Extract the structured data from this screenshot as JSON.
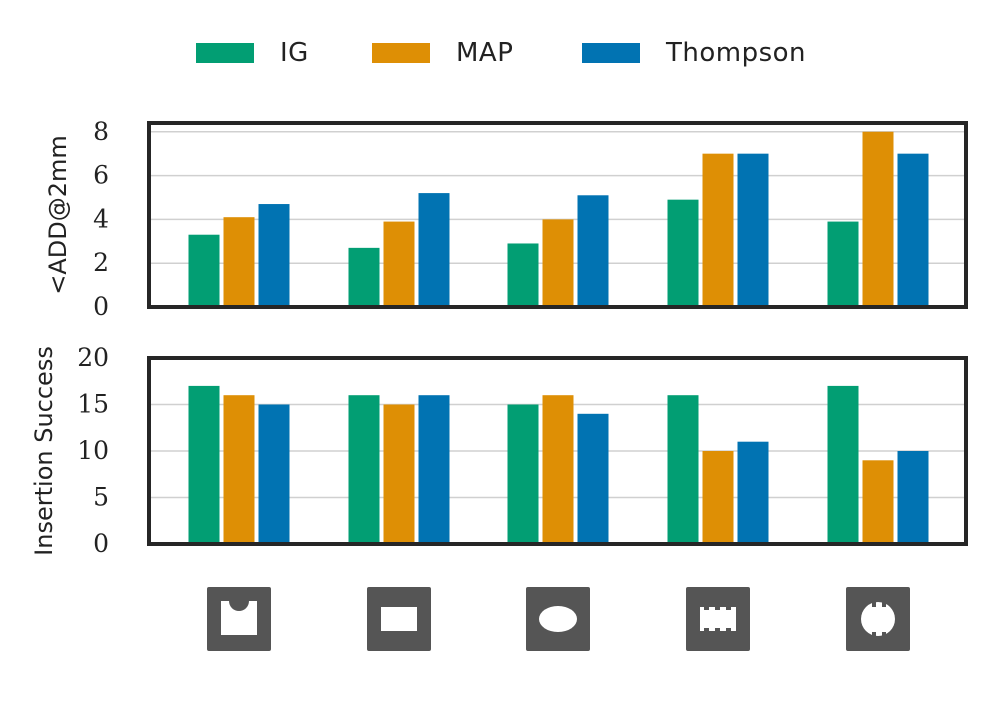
{
  "legend": [
    {
      "label": "IG",
      "color": "#029e73"
    },
    {
      "label": "MAP",
      "color": "#de8f05"
    },
    {
      "label": "Thompson",
      "color": "#0173b2"
    }
  ],
  "chart_data": [
    {
      "type": "bar",
      "ylabel": "<ADD@2mm",
      "ylim": [
        0,
        8.4
      ],
      "yticks": [
        0,
        2,
        4,
        6,
        8
      ],
      "grid": true,
      "categories": [
        "shape-1",
        "shape-2",
        "shape-3",
        "shape-4",
        "shape-5"
      ],
      "series": [
        {
          "name": "IG",
          "values": [
            3.3,
            2.7,
            2.9,
            4.9,
            3.9
          ]
        },
        {
          "name": "MAP",
          "values": [
            4.1,
            3.9,
            4.0,
            7.0,
            8.0
          ]
        },
        {
          "name": "Thompson",
          "values": [
            4.7,
            5.2,
            5.1,
            7.0,
            7.0
          ]
        }
      ]
    },
    {
      "type": "bar",
      "ylabel": "Insertion Success",
      "ylim": [
        0,
        20
      ],
      "yticks": [
        0,
        5,
        10,
        15,
        20
      ],
      "grid": true,
      "categories": [
        "shape-1",
        "shape-2",
        "shape-3",
        "shape-4",
        "shape-5"
      ],
      "series": [
        {
          "name": "IG",
          "values": [
            17,
            16,
            15,
            16,
            17
          ]
        },
        {
          "name": "MAP",
          "values": [
            16,
            15,
            16,
            10,
            9
          ]
        },
        {
          "name": "Thompson",
          "values": [
            15,
            16,
            14,
            11,
            10
          ]
        }
      ]
    }
  ],
  "shape_icons": [
    "half-circle-hole-icon",
    "rectangle-hole-icon",
    "ellipse-hole-icon",
    "notched-rectangle-hole-icon",
    "notched-circle-hole-icon"
  ]
}
